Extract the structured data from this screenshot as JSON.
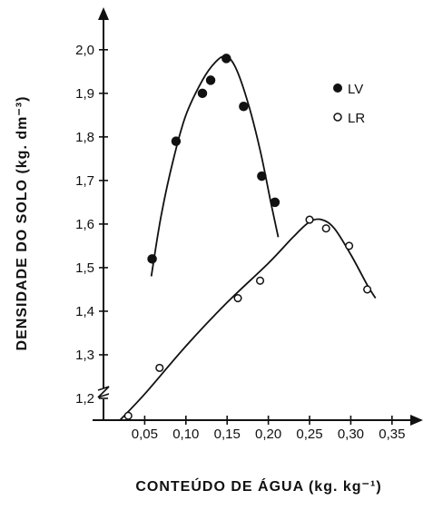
{
  "chart_data": {
    "type": "scatter",
    "title": "",
    "xlabel": "CONTEÚDO DE ÁGUA (kg. kg⁻¹)",
    "ylabel": "DENSIDADE DO SOLO (kg. dm⁻³)",
    "xlim": [
      0.0,
      0.37
    ],
    "ylim": [
      1.15,
      2.06
    ],
    "x_ticks": [
      "0,05",
      "0,10",
      "0,15",
      "0,20",
      "0,25",
      "0,30",
      "0,35"
    ],
    "x_tick_values": [
      0.05,
      0.1,
      0.15,
      0.2,
      0.25,
      0.3,
      0.35
    ],
    "y_ticks": [
      "1,2",
      "1,3",
      "1,4",
      "1,5",
      "1,6",
      "1,7",
      "1,8",
      "1,9",
      "2,0"
    ],
    "y_tick_values": [
      1.2,
      1.3,
      1.4,
      1.5,
      1.6,
      1.7,
      1.8,
      1.9,
      2.0
    ],
    "axis_break": "y-axis near 1,15",
    "grid": false,
    "legend_position": "top-right",
    "series": [
      {
        "name": "LV",
        "marker": "filled-circle",
        "color": "#111111",
        "points": [
          [
            0.059,
            1.52
          ],
          [
            0.088,
            1.79
          ],
          [
            0.12,
            1.9
          ],
          [
            0.13,
            1.93
          ],
          [
            0.149,
            1.98
          ],
          [
            0.17,
            1.87
          ],
          [
            0.192,
            1.71
          ],
          [
            0.208,
            1.65
          ]
        ],
        "fit_curve": [
          [
            0.058,
            1.48
          ],
          [
            0.07,
            1.62
          ],
          [
            0.085,
            1.75
          ],
          [
            0.1,
            1.85
          ],
          [
            0.12,
            1.93
          ],
          [
            0.135,
            1.97
          ],
          [
            0.148,
            1.985
          ],
          [
            0.16,
            1.96
          ],
          [
            0.175,
            1.88
          ],
          [
            0.19,
            1.77
          ],
          [
            0.203,
            1.65
          ],
          [
            0.212,
            1.57
          ]
        ]
      },
      {
        "name": "LR",
        "marker": "open-circle",
        "color": "#111111",
        "points": [
          [
            0.03,
            1.16
          ],
          [
            0.068,
            1.27
          ],
          [
            0.163,
            1.43
          ],
          [
            0.19,
            1.47
          ],
          [
            0.25,
            1.61
          ],
          [
            0.27,
            1.59
          ],
          [
            0.298,
            1.55
          ],
          [
            0.32,
            1.45
          ]
        ],
        "fit_curve": [
          [
            0.02,
            1.15
          ],
          [
            0.05,
            1.21
          ],
          [
            0.1,
            1.32
          ],
          [
            0.15,
            1.42
          ],
          [
            0.2,
            1.51
          ],
          [
            0.23,
            1.57
          ],
          [
            0.25,
            1.605
          ],
          [
            0.265,
            1.61
          ],
          [
            0.28,
            1.59
          ],
          [
            0.3,
            1.53
          ],
          [
            0.32,
            1.46
          ],
          [
            0.33,
            1.43
          ]
        ]
      }
    ]
  }
}
